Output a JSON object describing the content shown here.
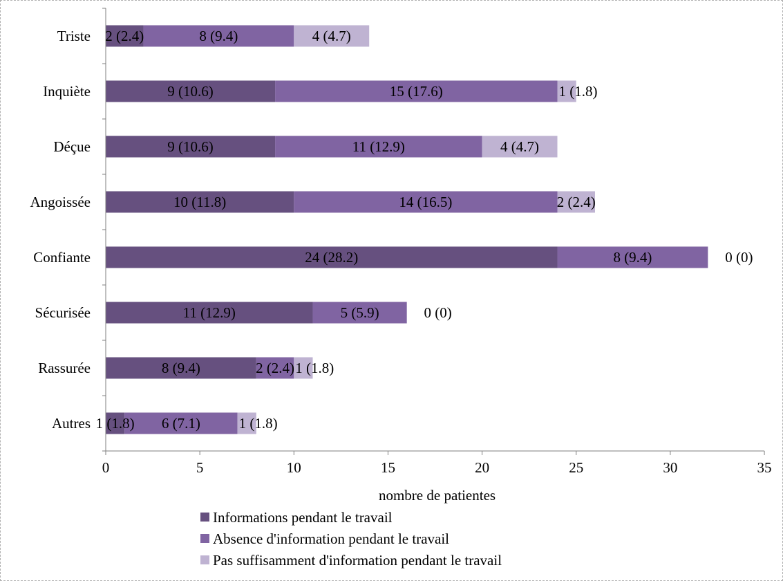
{
  "chart_data": {
    "type": "bar",
    "orientation": "horizontal",
    "stacked": true,
    "categories": [
      "Triste",
      "Inquiète",
      "Déçue",
      "Angoissée",
      "Confiante",
      "Sécurisée",
      "Rassurée",
      "Autres"
    ],
    "series": [
      {
        "name": "Informations pendant le travail",
        "color": "#66507f",
        "values": [
          2,
          9,
          9,
          10,
          24,
          11,
          8,
          1
        ],
        "labels": [
          "2 (2.4)",
          "9 (10.6)",
          "9 (10.6)",
          "10 (11.8)",
          "24 (28.2)",
          "11 (12.9)",
          "8 (9.4)",
          "1 (1.8)"
        ]
      },
      {
        "name": "Absence d'information pendant le travail",
        "color": "#8064a2",
        "values": [
          8,
          15,
          11,
          14,
          8,
          5,
          2,
          6
        ],
        "labels": [
          "8 (9.4)",
          "15 (17.6)",
          "11 (12.9)",
          "14 (16.5)",
          "8 (9.4)",
          "5 (5.9)",
          "2 (2.4)",
          "6 (7.1)"
        ]
      },
      {
        "name": "Pas suffisamment d'information pendant le travail",
        "color": "#bfb3d2",
        "values": [
          4,
          1,
          4,
          2,
          0,
          0,
          1,
          1
        ],
        "labels": [
          "4 (4.7)",
          "1 (1.8)",
          "4 (4.7)",
          "2 (2.4)",
          "0 (0)",
          "0 (0)",
          "1 (1.8)",
          "1 (1.8)"
        ]
      }
    ],
    "xlabel": "nombre de patientes",
    "ylabel": "",
    "xlim": [
      0,
      35
    ],
    "xticks": [
      0,
      5,
      10,
      15,
      20,
      25,
      30,
      35
    ],
    "grid": false,
    "legend_position": "bottom"
  }
}
